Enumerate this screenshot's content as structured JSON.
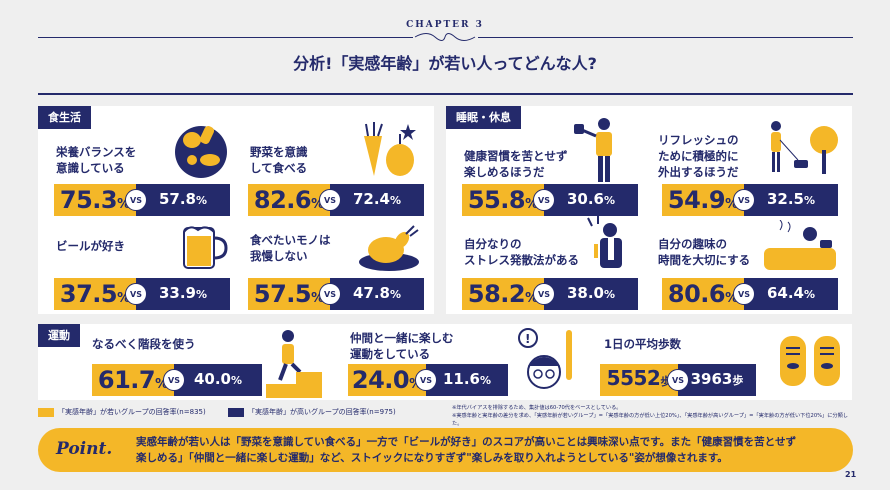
{
  "header": {
    "chapter": "CHAPTER 3",
    "title": "分析!「実感年齢」が若い人ってどんな人?"
  },
  "sections": {
    "diet": {
      "tag": "食生活"
    },
    "sleep": {
      "tag": "睡眠・休息"
    },
    "exercise": {
      "tag": "運動"
    }
  },
  "items": {
    "nutrition": {
      "q1": "栄養バランスを",
      "q2": "意識している",
      "young": "75.3",
      "old": "57.8",
      "unit": "%"
    },
    "vegetables": {
      "q1": "野菜を意識",
      "q2": "して食べる",
      "young": "82.6",
      "old": "72.4",
      "unit": "%"
    },
    "beer": {
      "q1": "ビールが好き",
      "young": "37.5",
      "old": "33.9",
      "unit": "%"
    },
    "food": {
      "q1": "食べたいモノは",
      "q2": "我慢しない",
      "young": "57.5",
      "old": "47.8",
      "unit": "%"
    },
    "early": {
      "q1": "健康習慣を苦とせず",
      "q2": "楽しめるほうだ",
      "young": "55.8",
      "old": "30.6",
      "unit": "%"
    },
    "refresh": {
      "q1": "リフレッシュの",
      "q2": "ために積極的に",
      "q3": "外出するほうだ",
      "young": "54.9",
      "old": "32.5",
      "unit": "%"
    },
    "stress": {
      "q1": "自分なりの",
      "q2": "ストレス発散法がある",
      "young": "58.2",
      "old": "38.0",
      "unit": "%"
    },
    "hobby": {
      "q1": "自分の趣味の",
      "q2": "時間を大切にする",
      "young": "80.6",
      "old": "64.4",
      "unit": "%"
    },
    "stairs": {
      "q1": "なるべく階段を使う",
      "young": "61.7",
      "old": "40.0",
      "unit": "%"
    },
    "friends": {
      "q1": "仲間と一緒に楽しむ",
      "q2": "運動をしている",
      "young": "24.0",
      "old": "11.6",
      "unit": "%"
    },
    "steps": {
      "q1": "1日の平均歩数",
      "young": "5552",
      "old": "3963",
      "unit": "歩"
    }
  },
  "vs_label": "VS",
  "legend": {
    "young": "「実感年齢」が若いグループの回答率(n=835)",
    "old": "「実感年齢」が高いグループの回答率(n=975)"
  },
  "notes": {
    "n1": "※年代バイアスを排除するため、集計値は60-70代をベースとしている。",
    "n2": "※実感年齢と実年齢の差分を求め、「実感年齢が若いグループ」=「実感年齢の方が低い上位20%」、「実感年齢が高いグループ」=「実年齢の方が低い下位20%」に分類した。"
  },
  "point": {
    "label": "Point.",
    "line1": "実感年齢が若い人は「野菜を意識してい食べる」一方で「ビールが好き」のスコアが高いことは興味深い点です。また「健康習慣を苦とせず",
    "line2": "楽しめる」「仲間と一緒に楽しむ運動」など、ストイックになりすぎず\"楽しみを取り入れようとしている\"姿が想像されます。"
  },
  "page_number": "21",
  "colors": {
    "navy": "#242a6b",
    "yellow": "#f4b728",
    "bg": "#efefef"
  }
}
